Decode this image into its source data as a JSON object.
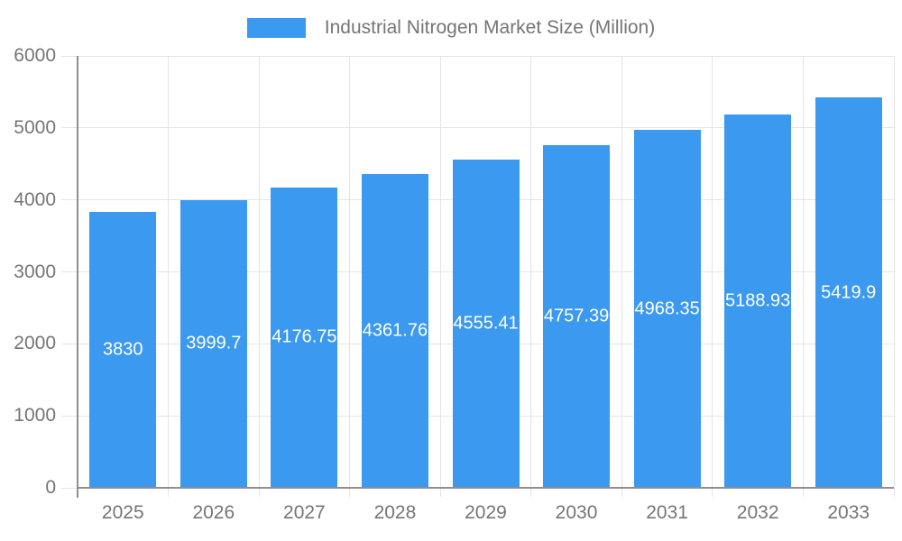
{
  "chart_data": {
    "type": "bar",
    "title": "Industrial Nitrogen Market Size (Million)",
    "legend": {
      "label": "Industrial Nitrogen Market Size (Million)",
      "position": "top-center"
    },
    "categories": [
      "2025",
      "2026",
      "2027",
      "2028",
      "2029",
      "2030",
      "2031",
      "2032",
      "2033"
    ],
    "series": [
      {
        "name": "Industrial Nitrogen Market Size (Million)",
        "values": [
          3830,
          3999.7,
          4176.75,
          4361.76,
          4555.41,
          4757.39,
          4968.35,
          5188.93,
          5419.9
        ],
        "bar_labels": [
          "3830",
          "3999.7",
          "4176.75",
          "4361.76",
          "4555.41",
          "4757.39",
          "4968.35",
          "5188.93",
          "5419.9"
        ]
      }
    ],
    "xlabel": "",
    "ylabel": "",
    "ylim": [
      0,
      6000
    ],
    "y_ticks": [
      0,
      1000,
      2000,
      3000,
      4000,
      5000,
      6000
    ],
    "y_tick_labels": [
      "0",
      "1000",
      "2000",
      "3000",
      "4000",
      "5000",
      "6000"
    ],
    "grid": true,
    "bar_label_position": "center-inside",
    "colors": {
      "bar": "#3b99f0",
      "grid_line": "#e4e4e4",
      "axis_line": "#8f8f8f",
      "tick_text": "#757575",
      "bar_label_text": "#ffffff",
      "background": "#ffffff"
    }
  }
}
